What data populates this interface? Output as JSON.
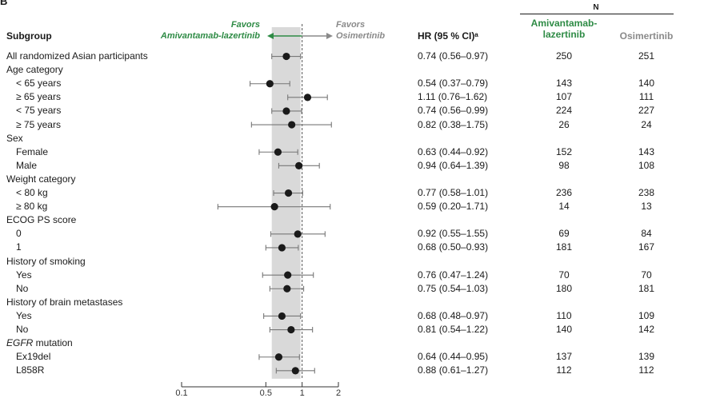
{
  "panel_label": "B",
  "header": {
    "subgroup": "Subgroup",
    "favors_left_1": "Favors",
    "favors_left_2": "Amivantamab-lazertinib",
    "favors_right_1": "Favors",
    "favors_right_2": "Osimertinib",
    "hr_col": "HR (95 % CI)ᵃ",
    "n_label": "N",
    "col_ami_1": "Amivantamab-",
    "col_ami_2": "lazertinib",
    "col_osi": "Osimertinib"
  },
  "colors": {
    "accent_green": "#2e8b45",
    "grey_arrow": "#8a8a8a",
    "band": "#d9d9d9",
    "marker": "#1a1a1a"
  },
  "chart_data": {
    "type": "forest",
    "x_scale": "log",
    "xlim": [
      0.1,
      2
    ],
    "x_ticks": [
      0.1,
      0.5,
      1,
      2
    ],
    "x_tick_labels": [
      "0.1",
      "0.5",
      "1",
      "2"
    ],
    "reference_line": 1,
    "shaded_band": [
      0.56,
      0.97
    ],
    "rows": [
      {
        "label": "All randomized Asian participants",
        "indent": 0,
        "hr": 0.74,
        "lo": 0.56,
        "hi": 0.97,
        "hr_text": "0.74 (0.56–0.97)",
        "n_ami": "250",
        "n_osi": "251"
      },
      {
        "label": "Age category",
        "indent": 0,
        "header": true
      },
      {
        "label": "< 65 years",
        "indent": 1,
        "hr": 0.54,
        "lo": 0.37,
        "hi": 0.79,
        "hr_text": "0.54 (0.37–0.79)",
        "n_ami": "143",
        "n_osi": "140"
      },
      {
        "label": "≥ 65 years",
        "indent": 1,
        "hr": 1.11,
        "lo": 0.76,
        "hi": 1.62,
        "hr_text": "1.11 (0.76–1.62)",
        "n_ami": "107",
        "n_osi": "111"
      },
      {
        "label": "< 75 years",
        "indent": 1,
        "hr": 0.74,
        "lo": 0.56,
        "hi": 0.99,
        "hr_text": "0.74 (0.56–0.99)",
        "n_ami": "224",
        "n_osi": "227"
      },
      {
        "label": "≥ 75 years",
        "indent": 1,
        "hr": 0.82,
        "lo": 0.38,
        "hi": 1.75,
        "hr_text": "0.82 (0.38–1.75)",
        "n_ami": "26",
        "n_osi": "24"
      },
      {
        "label": "Sex",
        "indent": 0,
        "header": true
      },
      {
        "label": "Female",
        "indent": 1,
        "hr": 0.63,
        "lo": 0.44,
        "hi": 0.92,
        "hr_text": "0.63 (0.44–0.92)",
        "n_ami": "152",
        "n_osi": "143"
      },
      {
        "label": "Male",
        "indent": 1,
        "hr": 0.94,
        "lo": 0.64,
        "hi": 1.39,
        "hr_text": "0.94 (0.64–1.39)",
        "n_ami": "98",
        "n_osi": "108"
      },
      {
        "label": "Weight category",
        "indent": 0,
        "header": true
      },
      {
        "label": "< 80 kg",
        "indent": 1,
        "hr": 0.77,
        "lo": 0.58,
        "hi": 1.01,
        "hr_text": "0.77 (0.58–1.01)",
        "n_ami": "236",
        "n_osi": "238"
      },
      {
        "label": "≥ 80 kg",
        "indent": 1,
        "hr": 0.59,
        "lo": 0.2,
        "hi": 1.71,
        "hr_text": "0.59 (0.20–1.71)",
        "n_ami": "14",
        "n_osi": "13"
      },
      {
        "label": "ECOG PS score",
        "indent": 0,
        "header": true
      },
      {
        "label": "0",
        "indent": 1,
        "hr": 0.92,
        "lo": 0.55,
        "hi": 1.55,
        "hr_text": "0.92 (0.55–1.55)",
        "n_ami": "69",
        "n_osi": "84"
      },
      {
        "label": "1",
        "indent": 1,
        "hr": 0.68,
        "lo": 0.5,
        "hi": 0.93,
        "hr_text": "0.68 (0.50–0.93)",
        "n_ami": "181",
        "n_osi": "167"
      },
      {
        "label": "History of smoking",
        "indent": 0,
        "header": true
      },
      {
        "label": "Yes",
        "indent": 1,
        "hr": 0.76,
        "lo": 0.47,
        "hi": 1.24,
        "hr_text": "0.76 (0.47–1.24)",
        "n_ami": "70",
        "n_osi": "70"
      },
      {
        "label": "No",
        "indent": 1,
        "hr": 0.75,
        "lo": 0.54,
        "hi": 1.03,
        "hr_text": "0.75 (0.54–1.03)",
        "n_ami": "180",
        "n_osi": "181"
      },
      {
        "label": "History of brain metastases",
        "indent": 0,
        "header": true
      },
      {
        "label": "Yes",
        "indent": 1,
        "hr": 0.68,
        "lo": 0.48,
        "hi": 0.97,
        "hr_text": "0.68 (0.48–0.97)",
        "n_ami": "110",
        "n_osi": "109"
      },
      {
        "label": "No",
        "indent": 1,
        "hr": 0.81,
        "lo": 0.54,
        "hi": 1.22,
        "hr_text": "0.81 (0.54–1.22)",
        "n_ami": "140",
        "n_osi": "142"
      },
      {
        "label_italic": "EGFR",
        "label": " mutation",
        "indent": 0,
        "header": true
      },
      {
        "label": "Ex19del",
        "indent": 1,
        "hr": 0.64,
        "lo": 0.44,
        "hi": 0.95,
        "hr_text": "0.64 (0.44–0.95)",
        "n_ami": "137",
        "n_osi": "139"
      },
      {
        "label": "L858R",
        "indent": 1,
        "hr": 0.88,
        "lo": 0.61,
        "hi": 1.27,
        "hr_text": "0.88 (0.61–1.27)",
        "n_ami": "112",
        "n_osi": "112"
      }
    ]
  }
}
